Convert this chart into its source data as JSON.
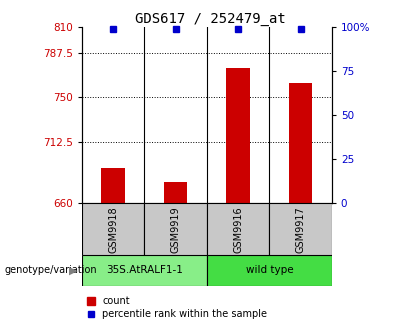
{
  "title": "GDS617 / 252479_at",
  "samples": [
    "GSM9918",
    "GSM9919",
    "GSM9916",
    "GSM9917"
  ],
  "counts": [
    690,
    678,
    775,
    762
  ],
  "percentiles": [
    99,
    99,
    99,
    99
  ],
  "ylim_left": [
    660,
    810
  ],
  "ylim_right": [
    0,
    100
  ],
  "yticks_left": [
    660,
    712.5,
    750,
    787.5,
    810
  ],
  "yticks_right": [
    0,
    25,
    50,
    75,
    100
  ],
  "ytick_labels_left": [
    "660",
    "712.5",
    "750",
    "787.5",
    "810"
  ],
  "ytick_labels_right": [
    "0",
    "25",
    "50",
    "75",
    "100%"
  ],
  "bar_color": "#cc0000",
  "marker_color": "#0000cc",
  "groups": [
    {
      "label": "35S.AtRALF1-1",
      "samples": [
        0,
        1
      ],
      "color": "#88ee88"
    },
    {
      "label": "wild type",
      "samples": [
        2,
        3
      ],
      "color": "#44dd44"
    }
  ],
  "genotype_label": "genotype/variation",
  "legend_count_label": "count",
  "legend_percentile_label": "percentile rank within the sample",
  "plot_bg": "#ffffff",
  "sample_area_bg": "#c8c8c8",
  "bar_width": 0.38,
  "title_fontsize": 10,
  "tick_fontsize": 7.5,
  "label_fontsize": 8
}
